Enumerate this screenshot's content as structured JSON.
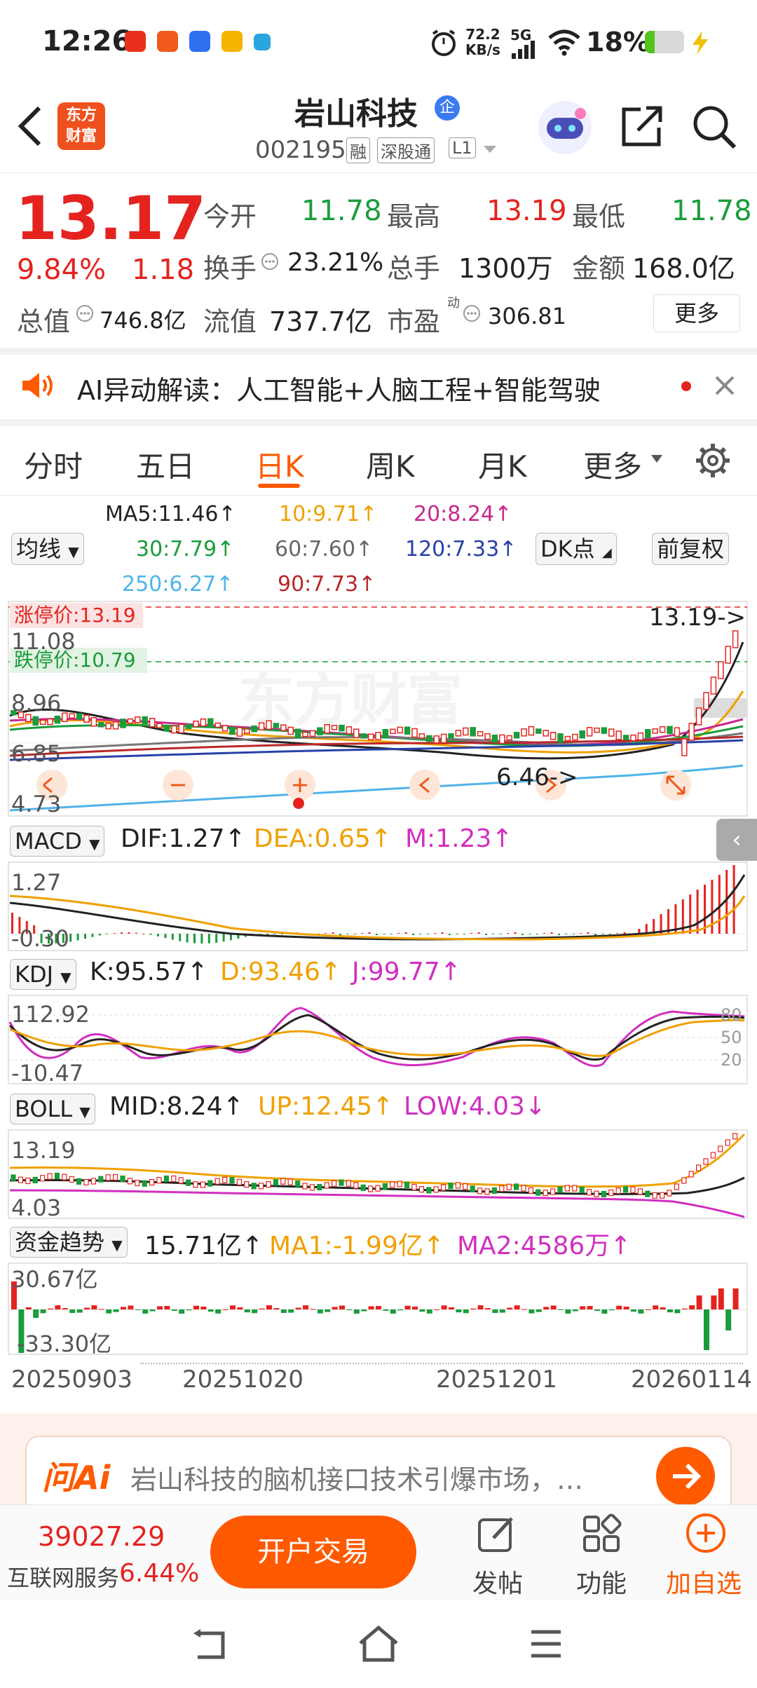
{
  "status_bar": {
    "time": "12:26",
    "net_speed_top": "72.2",
    "net_speed_unit": "KB/s",
    "network": "5G",
    "battery": "18%"
  },
  "header": {
    "back_label": "back",
    "logo_line1": "东方",
    "logo_line2": "财富",
    "title": "岩山科技",
    "title_badge": "企",
    "code": "002195",
    "tag_rong": "融",
    "tag_sgt": "深股通",
    "tag_level": "L1"
  },
  "quote": {
    "price": "13.17",
    "pct": "9.84%",
    "change": "1.18",
    "open_label": "今开",
    "open": "11.78",
    "high_label": "最高",
    "high": "13.19",
    "low_label": "最低",
    "low": "11.78",
    "turnover_label": "换手",
    "turnover": "23.21%",
    "volume_label": "总手",
    "volume": "1300万",
    "amount_label": "金额",
    "amount": "168.0亿",
    "mcap_label": "总值",
    "mcap": "746.8亿",
    "float_label": "流值",
    "float": "737.7亿",
    "pe_label": "市盈",
    "pe_sup": "动",
    "pe": "306.81",
    "more": "更多"
  },
  "ai_banner": {
    "text": "AI异动解读：人工智能+人脑工程+智能驾驶"
  },
  "period_tabs": [
    {
      "label": "分时"
    },
    {
      "label": "五日"
    },
    {
      "label": "日K"
    },
    {
      "label": "周K"
    },
    {
      "label": "月K"
    },
    {
      "label": "更多"
    }
  ],
  "ma": {
    "selector": "均线",
    "ma5": "MA5:11.46",
    "ma10": "10:9.71",
    "ma20": "20:8.24",
    "ma30": "30:7.79",
    "ma60": "60:7.60",
    "ma120": "120:7.33",
    "ma250": "250:6.27",
    "ma90": "90:7.73",
    "dk": "DK点",
    "fq": "前复权"
  },
  "kline": {
    "limit_up": "涨停价:13.19",
    "limit_down": "跌停价:10.79",
    "y_top": "11.08",
    "y_2": "8.96",
    "y_3": "6.85",
    "y_bottom": "4.73",
    "hi_marker": "13.19->",
    "lo_marker": "6.46->",
    "watermark": "东方财富"
  },
  "macd": {
    "selector": "MACD",
    "dif": "DIF:1.27",
    "dea": "DEA:0.65",
    "m": "M:1.23",
    "y_top": "1.27",
    "y_bottom": "-0.30"
  },
  "kdj": {
    "selector": "KDJ",
    "k": "K:95.57",
    "d": "D:93.46",
    "j": "J:99.77",
    "y_top": "112.92",
    "y_bottom": "-10.47",
    "lvl80": "80",
    "lvl50": "50",
    "lvl20": "20"
  },
  "boll": {
    "selector": "BOLL",
    "mid": "MID:8.24",
    "up": "UP:12.45",
    "low": "LOW:4.03",
    "y_top": "13.19",
    "y_bottom": "4.03"
  },
  "fund": {
    "selector": "资金趋势",
    "value": "15.71亿",
    "ma1": "MA1:-1.99亿",
    "ma2": "MA2:4586万",
    "y_top": "30.67亿",
    "y_bottom": "-33.30亿"
  },
  "dates": [
    "20250903",
    "20251020",
    "20251201",
    "20260114"
  ],
  "arrows": {
    "up": "↑",
    "down": "↓"
  },
  "ask_ai": {
    "brand": "问Ai",
    "text": "岩山科技的脑机接口技术引爆市场，…"
  },
  "bottom": {
    "index_value": "39027.29",
    "index_name": "互联网服务",
    "index_pct": "6.44%",
    "trade": "开户交易",
    "post": "发帖",
    "func": "功能",
    "add": "加自选"
  },
  "colors": {
    "up": "#e4231f",
    "down": "#1a9c3b",
    "accent": "#ff5a00"
  }
}
